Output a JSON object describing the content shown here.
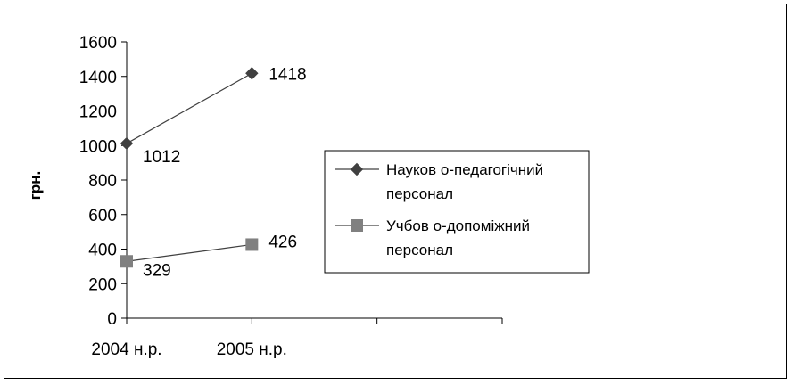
{
  "chart_data": {
    "type": "line",
    "categories": [
      "2004 н.р.",
      "2005 н.р."
    ],
    "series": [
      {
        "name": "Науково-педагогічний персонал",
        "legend_lines": [
          "Науков о-педагогічний",
          "персонал"
        ],
        "values": [
          1012,
          1418
        ],
        "marker": "diamond",
        "color": "#404040",
        "marker_color": "#404040"
      },
      {
        "name": "Учбово-допоміжний персонал",
        "legend_lines": [
          "Учбов о-допоміжний",
          "персонал"
        ],
        "values": [
          329,
          426
        ],
        "marker": "square",
        "color": "#404040",
        "marker_color": "#808080"
      }
    ],
    "data_labels": [
      [
        "1012",
        "1418"
      ],
      [
        "329",
        "426"
      ]
    ],
    "ylabel": "грн.",
    "xlabel": "",
    "title": "",
    "ylim": [
      0,
      1600
    ],
    "yticks": [
      "0",
      "200",
      "400",
      "600",
      "800",
      "1000",
      "1200",
      "1400",
      "1600"
    ],
    "x_slots": 3,
    "legend_position": "right",
    "grid": false
  }
}
